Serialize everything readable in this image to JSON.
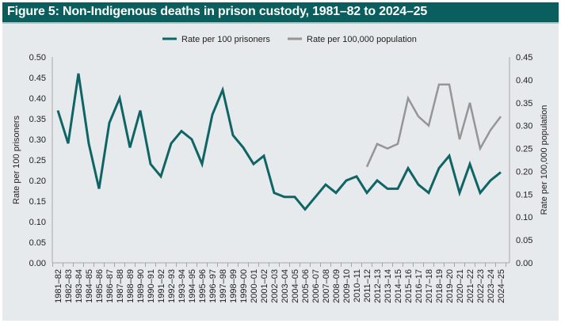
{
  "header": {
    "title": "Figure 5: Non-Indigenous deaths in prison custody, 1981–82 to 2024–25"
  },
  "colors": {
    "header_bg": "#0a5e5e",
    "series_prisoners": "#0f6565",
    "series_population": "#959595",
    "background": "#e7eaec"
  },
  "chart_data": {
    "type": "line",
    "title": "Figure 5: Non-Indigenous deaths in prison custody, 1981–82 to 2024–25",
    "xlabel": "",
    "ylabel": "Rate per 100 prisoners",
    "y2label": "Rate per 100,000 population",
    "ylim": [
      0,
      0.5
    ],
    "y2lim": [
      0,
      0.45
    ],
    "yticks": [
      "0.00",
      "0.05",
      "0.10",
      "0.15",
      "0.20",
      "0.25",
      "0.30",
      "0.35",
      "0.40",
      "0.45",
      "0.50"
    ],
    "y2ticks": [
      "0.00",
      "0.05",
      "0.10",
      "0.15",
      "0.20",
      "0.25",
      "0.30",
      "0.35",
      "0.40",
      "0.45"
    ],
    "legend_position": "top-center",
    "grid": false,
    "categories": [
      "1981–82",
      "1982–83",
      "1983–84",
      "1984–85",
      "1985–86",
      "1986–87",
      "1987–88",
      "1988–89",
      "1989–90",
      "1990–91",
      "1991–92",
      "1992–93",
      "1993–94",
      "1994–95",
      "1995–96",
      "1996–97",
      "1997–98",
      "1998–99",
      "1999–00",
      "2000–01",
      "2001–02",
      "2002–03",
      "2003–04",
      "2004–05",
      "2005–06",
      "2006–07",
      "2007–08",
      "2008–09",
      "2009–10",
      "2010–11",
      "2011–12",
      "2012–13",
      "2013–14",
      "2014–15",
      "2015–16",
      "2016–17",
      "2017–18",
      "2018–19",
      "2019–20",
      "2020–21",
      "2021–22",
      "2022–23",
      "2023–24",
      "2024–25"
    ],
    "series": [
      {
        "name": "Rate per 100 prisoners",
        "axis": "left",
        "values": [
          0.37,
          0.29,
          0.46,
          0.29,
          0.18,
          0.34,
          0.4,
          0.28,
          0.37,
          0.24,
          0.21,
          0.29,
          0.32,
          0.3,
          0.24,
          0.36,
          0.42,
          0.31,
          0.28,
          0.24,
          0.26,
          0.17,
          0.16,
          0.16,
          0.13,
          0.16,
          0.19,
          0.17,
          0.2,
          0.21,
          0.17,
          0.2,
          0.18,
          0.18,
          0.23,
          0.19,
          0.17,
          0.23,
          0.26,
          0.17,
          0.24,
          0.17,
          0.2,
          0.22
        ]
      },
      {
        "name": "Rate per 100,000 population",
        "axis": "right",
        "values": [
          null,
          null,
          null,
          null,
          null,
          null,
          null,
          null,
          null,
          null,
          null,
          null,
          null,
          null,
          null,
          null,
          null,
          null,
          null,
          null,
          null,
          null,
          null,
          null,
          null,
          null,
          null,
          null,
          null,
          null,
          0.21,
          0.26,
          0.25,
          0.26,
          0.36,
          0.32,
          0.3,
          0.39,
          0.39,
          0.27,
          0.35,
          0.25,
          0.29,
          0.32
        ]
      }
    ]
  }
}
